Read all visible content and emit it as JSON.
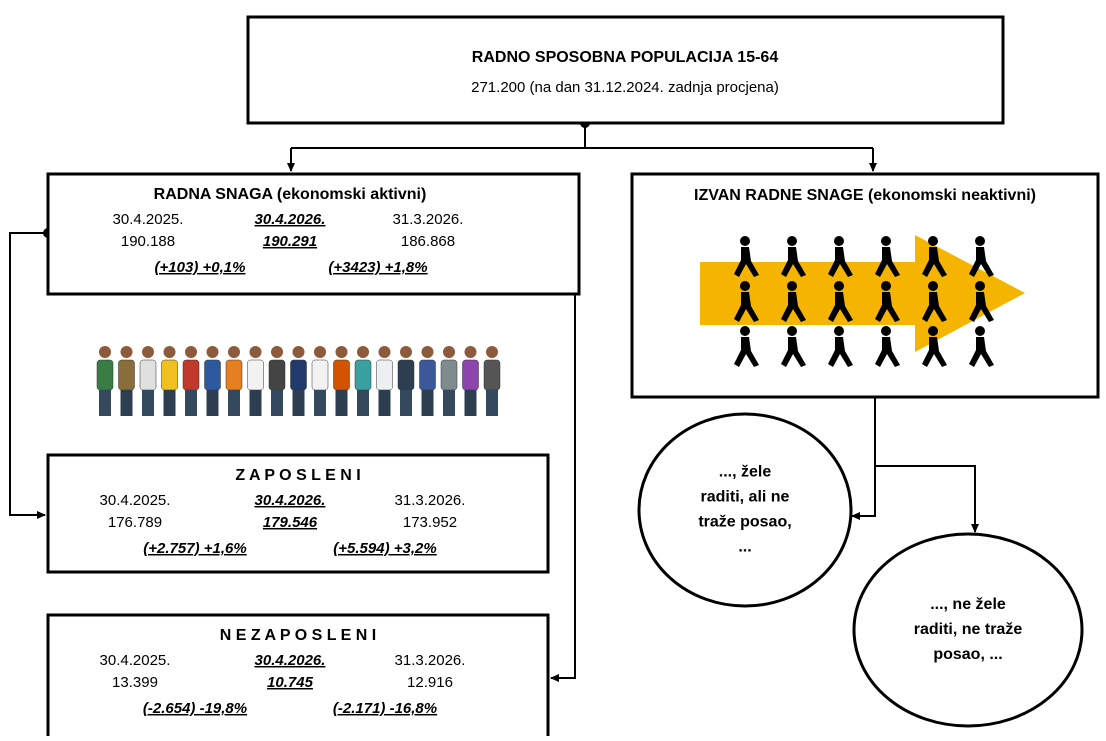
{
  "top": {
    "title": "RADNO SPOSOBNA POPULACIJA 15-64",
    "subtitle": "271.200 (na dan 31.12.2024. zadnja procjena)"
  },
  "labor_force": {
    "title": "RADNA SNAGA (ekonomski aktivni)",
    "rows": [
      [
        "30.4.2025.",
        "30.4.2026.",
        "31.3.2026."
      ],
      [
        "190.188",
        "190.291",
        "186.868"
      ]
    ],
    "changes": [
      "(+103) +0,1%",
      "(+3423) +1,8%"
    ]
  },
  "employed": {
    "title": "Z A P O S L E N I",
    "rows": [
      [
        "30.4.2025.",
        "30.4.2026.",
        "31.3.2026."
      ],
      [
        "176.789",
        "179.546",
        "173.952"
      ]
    ],
    "changes": [
      "(+2.757) +1,6%",
      "(+5.594) +3,2%"
    ]
  },
  "unemployed": {
    "title": "N E Z A P O S L E N I",
    "rows": [
      [
        "30.4.2025.",
        "30.4.2026.",
        "31.3.2026."
      ],
      [
        "13.399",
        "10.745",
        "12.916"
      ]
    ],
    "changes": [
      "(-2.654) -19,8%",
      "(-2.171) -16,8%"
    ]
  },
  "inactive": {
    "title": "IZVAN RADNE SNAGE (ekonomski neaktivni)"
  },
  "bubbles": [
    {
      "lines": [
        "..., žele",
        "raditi, ali ne",
        "traže posao,",
        "..."
      ]
    },
    {
      "lines": [
        "..., ne žele",
        "raditi, ne traže",
        "posao, ..."
      ]
    }
  ]
}
